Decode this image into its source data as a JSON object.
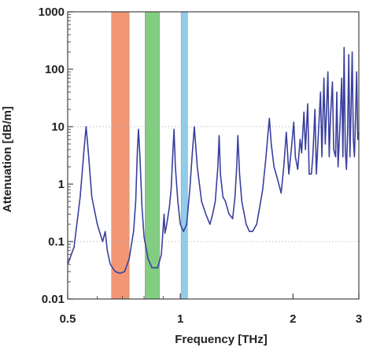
{
  "chart_data": {
    "type": "line",
    "title": "",
    "xlabel": "Frequency [THz]",
    "ylabel": "Attenuation [dB/m]",
    "x_scale": "log",
    "y_scale": "log",
    "xlim": [
      0.5,
      3
    ],
    "ylim": [
      0.01,
      1000
    ],
    "x_ticks": [
      0.5,
      1,
      2,
      3
    ],
    "x_tick_labels": [
      "0.5",
      "1",
      "2",
      "3"
    ],
    "y_ticks": [
      0.01,
      0.1,
      1,
      10,
      100,
      1000
    ],
    "y_tick_labels": [
      "0.01",
      "0.1",
      "1",
      "10",
      "100",
      "1000"
    ],
    "grid": "dotted horizontal at 10 and 0.1",
    "legend": "none",
    "colors": {
      "line": "#3a3f9e",
      "band_orange": "#f0845c",
      "band_green": "#6cc46c",
      "band_blue": "#7cc4e8",
      "axis": "#444444"
    },
    "bands": [
      {
        "color_key": "band_orange",
        "x_start": 0.655,
        "x_end": 0.73
      },
      {
        "color_key": "band_green",
        "x_start": 0.805,
        "x_end": 0.88
      },
      {
        "color_key": "band_blue",
        "x_start": 1.005,
        "x_end": 1.045
      }
    ],
    "series": [
      {
        "points": [
          [
            0.5,
            0.04
          ],
          [
            0.52,
            0.08
          ],
          [
            0.54,
            0.6
          ],
          [
            0.553,
            4.0
          ],
          [
            0.56,
            10.0
          ],
          [
            0.567,
            4.0
          ],
          [
            0.58,
            0.6
          ],
          [
            0.6,
            0.2
          ],
          [
            0.62,
            0.1
          ],
          [
            0.63,
            0.15
          ],
          [
            0.638,
            0.07
          ],
          [
            0.65,
            0.04
          ],
          [
            0.67,
            0.03
          ],
          [
            0.69,
            0.028
          ],
          [
            0.71,
            0.03
          ],
          [
            0.73,
            0.05
          ],
          [
            0.75,
            0.15
          ],
          [
            0.76,
            0.5
          ],
          [
            0.768,
            4.0
          ],
          [
            0.773,
            9.0
          ],
          [
            0.78,
            3.0
          ],
          [
            0.79,
            0.4
          ],
          [
            0.8,
            0.12
          ],
          [
            0.82,
            0.05
          ],
          [
            0.84,
            0.035
          ],
          [
            0.87,
            0.035
          ],
          [
            0.89,
            0.06
          ],
          [
            0.905,
            0.3
          ],
          [
            0.91,
            0.14
          ],
          [
            0.92,
            0.2
          ],
          [
            0.935,
            0.4
          ],
          [
            0.945,
            0.8
          ],
          [
            0.955,
            3.5
          ],
          [
            0.962,
            9.0
          ],
          [
            0.97,
            2.0
          ],
          [
            0.985,
            0.5
          ],
          [
            1.0,
            0.2
          ],
          [
            1.02,
            0.15
          ],
          [
            1.04,
            0.2
          ],
          [
            1.06,
            0.8
          ],
          [
            1.075,
            3.0
          ],
          [
            1.09,
            10.0
          ],
          [
            1.11,
            2.0
          ],
          [
            1.14,
            0.5
          ],
          [
            1.17,
            0.3
          ],
          [
            1.2,
            0.2
          ],
          [
            1.22,
            0.3
          ],
          [
            1.24,
            0.5
          ],
          [
            1.26,
            2.0
          ],
          [
            1.27,
            7.0
          ],
          [
            1.28,
            1.5
          ],
          [
            1.3,
            0.6
          ],
          [
            1.32,
            0.5
          ],
          [
            1.35,
            0.3
          ],
          [
            1.38,
            0.25
          ],
          [
            1.4,
            0.6
          ],
          [
            1.415,
            2.0
          ],
          [
            1.425,
            7.0
          ],
          [
            1.44,
            1.5
          ],
          [
            1.46,
            0.5
          ],
          [
            1.5,
            0.2
          ],
          [
            1.53,
            0.15
          ],
          [
            1.56,
            0.15
          ],
          [
            1.6,
            0.2
          ],
          [
            1.63,
            0.4
          ],
          [
            1.66,
            0.8
          ],
          [
            1.69,
            2.5
          ],
          [
            1.71,
            6.0
          ],
          [
            1.73,
            14.0
          ],
          [
            1.75,
            5.0
          ],
          [
            1.78,
            2.0
          ],
          [
            1.82,
            1.2
          ],
          [
            1.86,
            0.7
          ],
          [
            1.89,
            2.0
          ],
          [
            1.92,
            8.0
          ],
          [
            1.95,
            1.5
          ],
          [
            1.98,
            4.0
          ],
          [
            2.01,
            12.0
          ],
          [
            2.03,
            3.0
          ],
          [
            2.06,
            1.8
          ],
          [
            2.09,
            6.0
          ],
          [
            2.11,
            3.5
          ],
          [
            2.14,
            18.0
          ],
          [
            2.16,
            4.0
          ],
          [
            2.19,
            25.0
          ],
          [
            2.21,
            1.5
          ],
          [
            2.24,
            1.5
          ],
          [
            2.26,
            3.0
          ],
          [
            2.29,
            20.0
          ],
          [
            2.31,
            1.5
          ],
          [
            2.34,
            8.0
          ],
          [
            2.37,
            40.0
          ],
          [
            2.39,
            3.0
          ],
          [
            2.42,
            70.0
          ],
          [
            2.44,
            5.0
          ],
          [
            2.46,
            20.0
          ],
          [
            2.48,
            90.0
          ],
          [
            2.5,
            3.0
          ],
          [
            2.52,
            15.0
          ],
          [
            2.55,
            60.0
          ],
          [
            2.57,
            4.0
          ],
          [
            2.6,
            3.0
          ],
          [
            2.62,
            40.0
          ],
          [
            2.64,
            2.0
          ],
          [
            2.67,
            10.0
          ],
          [
            2.7,
            70.0
          ],
          [
            2.72,
            3.0
          ],
          [
            2.74,
            240.0
          ],
          [
            2.76,
            4.0
          ],
          [
            2.78,
            1.8
          ],
          [
            2.8,
            8.0
          ],
          [
            2.82,
            180.0
          ],
          [
            2.84,
            3.0
          ],
          [
            2.86,
            20.0
          ],
          [
            2.88,
            200.0
          ],
          [
            2.9,
            6.0
          ],
          [
            2.92,
            3.0
          ],
          [
            2.94,
            15.0
          ],
          [
            2.96,
            90.0
          ],
          [
            2.98,
            6.0
          ],
          [
            3.0,
            8.0
          ]
        ]
      }
    ]
  }
}
